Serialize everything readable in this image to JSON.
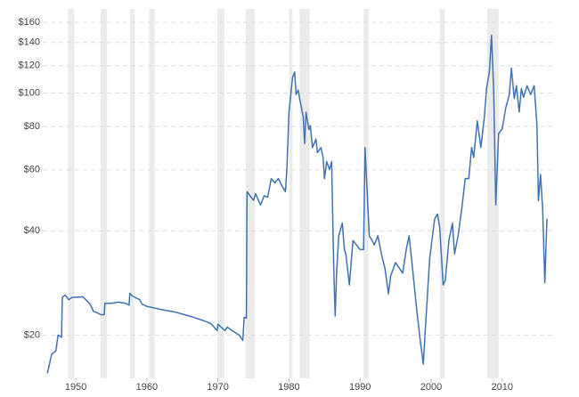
{
  "chart_data": {
    "type": "line",
    "log_scale": true,
    "grid": true,
    "ylim": [
      15,
      175
    ],
    "yticks": [
      {
        "value": 20,
        "label": "$20"
      },
      {
        "value": 40,
        "label": "$40"
      },
      {
        "value": 60,
        "label": "$60"
      },
      {
        "value": 80,
        "label": "$80"
      },
      {
        "value": 100,
        "label": "$100"
      },
      {
        "value": 120,
        "label": "$120"
      },
      {
        "value": 140,
        "label": "$140"
      },
      {
        "value": 160,
        "label": "$160"
      }
    ],
    "xlim": [
      1945.6,
      2016.8
    ],
    "xticks": [
      1950,
      1960,
      1970,
      1980,
      1990,
      2000,
      2010
    ],
    "shaded_regions": [
      [
        1948.9,
        1949.8
      ],
      [
        1953.5,
        1954.4
      ],
      [
        1957.6,
        1958.3
      ],
      [
        1960.3,
        1961.1
      ],
      [
        1969.9,
        1970.9
      ],
      [
        1973.9,
        1975.2
      ],
      [
        1980.0,
        1980.5
      ],
      [
        1981.5,
        1982.9
      ],
      [
        1990.5,
        1991.2
      ],
      [
        2001.2,
        2001.9
      ],
      [
        2007.9,
        2009.5
      ]
    ],
    "shade_color": "#ebebeb",
    "x": [
      1946.0,
      1946.3,
      1946.6,
      1947.2,
      1947.5,
      1948.0,
      1948.1,
      1948.5,
      1949.0,
      1949.5,
      1950.0,
      1951.0,
      1952.0,
      1952.5,
      1953.0,
      1953.5,
      1954.0,
      1954.1,
      1955.0,
      1956.0,
      1957.0,
      1957.5,
      1957.6,
      1958.0,
      1959.0,
      1959.3,
      1960.0,
      1962.0,
      1964.0,
      1966.0,
      1968.0,
      1969.0,
      1969.9,
      1970.0,
      1971.0,
      1971.3,
      1972.0,
      1973.0,
      1973.5,
      1973.7,
      1974.0,
      1974.1,
      1975.0,
      1975.3,
      1976.0,
      1976.5,
      1977.0,
      1977.5,
      1978.0,
      1978.5,
      1979.0,
      1979.5,
      1979.7,
      1980.0,
      1980.5,
      1980.8,
      1981.0,
      1981.3,
      1981.5,
      1982.0,
      1982.2,
      1982.4,
      1982.8,
      1983.0,
      1983.3,
      1983.8,
      1984.0,
      1984.5,
      1984.8,
      1985.0,
      1985.3,
      1985.7,
      1986.0,
      1986.3,
      1986.5,
      1986.7,
      1987.0,
      1987.5,
      1987.8,
      1988.0,
      1988.5,
      1989.0,
      1989.5,
      1990.0,
      1990.5,
      1990.7,
      1991.0,
      1991.3,
      1991.7,
      1992.0,
      1992.5,
      1993.0,
      1993.5,
      1994.0,
      1994.3,
      1995.0,
      1996.0,
      1996.5,
      1996.9,
      1997.3,
      1998.0,
      1998.5,
      1998.9,
      1999.3,
      1999.8,
      2000.2,
      2000.5,
      2000.9,
      2001.2,
      2001.7,
      2002.0,
      2002.5,
      2003.0,
      2003.3,
      2003.8,
      2004.3,
      2004.8,
      2005.3,
      2005.7,
      2006.0,
      2006.5,
      2007.0,
      2007.5,
      2007.8,
      2008.2,
      2008.5,
      2008.8,
      2009.1,
      2009.5,
      2010.0,
      2010.5,
      2011.0,
      2011.3,
      2011.7,
      2012.0,
      2012.4,
      2012.7,
      2013.0,
      2013.5,
      2014.0,
      2014.5,
      2014.9,
      2015.1,
      2015.4,
      2015.7,
      2016.0,
      2016.3
    ],
    "series": [
      {
        "color": "#3e72b5",
        "values": [
          15.5,
          16.5,
          17.6,
          18,
          20,
          19.7,
          25.7,
          26.1,
          25.3,
          25.7,
          25.7,
          25.8,
          24.6,
          23.4,
          23.2,
          22.9,
          22.9,
          24.7,
          24.7,
          24.9,
          24.7,
          24.4,
          26.4,
          25.9,
          25.3,
          24.6,
          24.2,
          23.7,
          23.3,
          22.7,
          22,
          21.6,
          20.6,
          21.5,
          20.6,
          21.1,
          20.6,
          20,
          19.3,
          22.5,
          22.4,
          51.9,
          49,
          51.2,
          47.5,
          50.5,
          50,
          56.6,
          55,
          56.6,
          54,
          51.9,
          60.1,
          88.2,
          111,
          115,
          99,
          102,
          96.4,
          85.5,
          71.5,
          88,
          78.4,
          80.5,
          69.6,
          73.6,
          67.3,
          69.6,
          65.2,
          56.6,
          63.4,
          60.1,
          63.4,
          31.1,
          22.7,
          30.2,
          38.7,
          42.1,
          35.3,
          34.3,
          27.9,
          37.5,
          36.4,
          35.3,
          35.3,
          69.6,
          51.9,
          38.7,
          37.5,
          36.4,
          38.7,
          34.3,
          31.2,
          26.3,
          29.6,
          32.4,
          30.2,
          35.3,
          38.7,
          32.4,
          23.4,
          19.1,
          16.5,
          22.7,
          33.3,
          38.7,
          43.3,
          44.7,
          41,
          27.9,
          28.8,
          37.5,
          42.1,
          34.3,
          38.7,
          46.1,
          56.6,
          56.6,
          69.6,
          65.2,
          83.1,
          69.6,
          85.5,
          103,
          115,
          147,
          103,
          47.5,
          76.4,
          78.8,
          90.5,
          99,
          118,
          96.4,
          105,
          88.2,
          103,
          97.2,
          105,
          99,
          105,
          80.5,
          48.9,
          58.2,
          46.1,
          28.3,
          43.3
        ]
      }
    ]
  }
}
